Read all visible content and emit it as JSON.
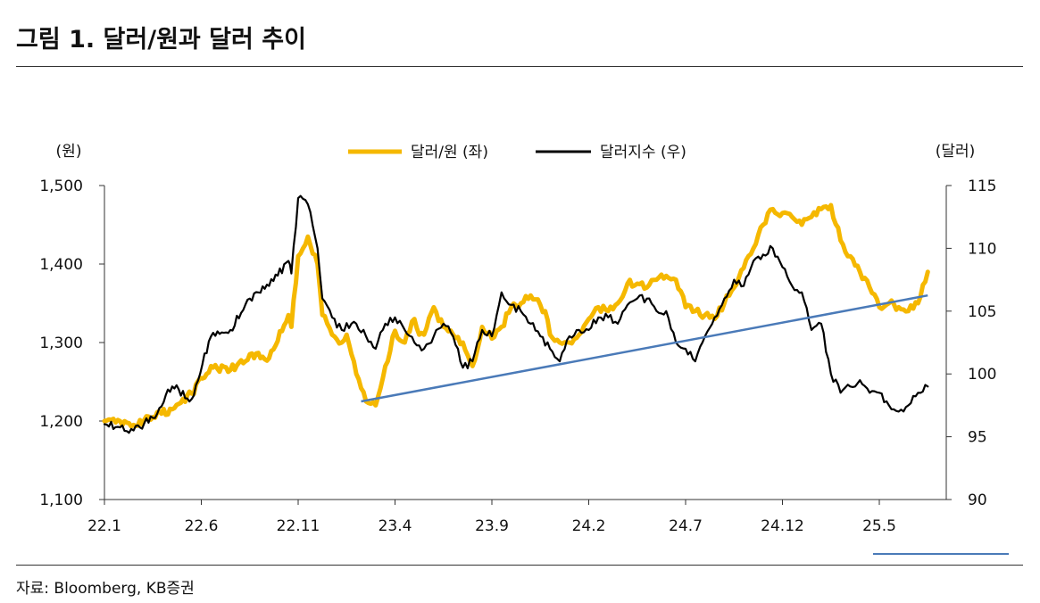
{
  "header": {
    "title": "그림 1. 달러/원과 달러 추이"
  },
  "footer": {
    "source": "자료: Bloomberg, KB증권"
  },
  "chart_data": {
    "type": "line",
    "left_axis": {
      "unit": "(원)",
      "range": [
        1100,
        1500
      ],
      "ticks": [
        "1,100",
        "1,200",
        "1,300",
        "1,400",
        "1,500"
      ],
      "tick_values": [
        1100,
        1200,
        1300,
        1400,
        1500
      ]
    },
    "right_axis": {
      "unit": "(달러)",
      "range": [
        90,
        115
      ],
      "ticks": [
        "90",
        "95",
        "100",
        "105",
        "110",
        "115"
      ],
      "tick_values": [
        90,
        95,
        100,
        105,
        110,
        115
      ]
    },
    "x_axis": {
      "ticks": [
        "22.1",
        "22.6",
        "22.11",
        "23.4",
        "23.9",
        "24.2",
        "24.7",
        "24.12",
        "25.5"
      ],
      "range": [
        0,
        8.58
      ]
    },
    "legend": {
      "placement": "top-center"
    },
    "series": [
      {
        "name": "달러/원 (좌)",
        "axis": "left",
        "color": "#F5B800",
        "x": [
          0,
          0.3,
          0.5,
          0.7,
          0.9,
          1.1,
          1.3,
          1.5,
          1.7,
          1.9,
          1.93,
          2.0,
          2.1,
          2.2,
          2.25,
          2.35,
          2.45,
          2.5,
          2.6,
          2.7,
          2.8,
          2.9,
          3.0,
          3.1,
          3.2,
          3.25,
          3.3,
          3.4,
          3.5,
          3.6,
          3.7,
          3.8,
          3.9,
          4.0,
          4.1,
          4.2,
          4.3,
          4.4,
          4.45,
          4.55,
          4.6,
          4.7,
          4.8,
          4.9,
          5.0,
          5.1,
          5.2,
          5.3,
          5.4,
          5.5,
          5.6,
          5.7,
          5.8,
          5.9,
          6.0,
          6.1,
          6.2,
          6.3,
          6.4,
          6.5,
          6.6,
          6.7,
          6.8,
          6.9,
          7.0,
          7.1,
          7.2,
          7.3,
          7.4,
          7.5,
          7.6,
          7.7,
          7.8,
          7.9,
          8.0,
          8.1,
          8.2,
          8.3,
          8.4,
          8.5
        ],
        "values": [
          1200,
          1195,
          1205,
          1215,
          1235,
          1270,
          1265,
          1285,
          1280,
          1335,
          1320,
          1410,
          1435,
          1400,
          1335,
          1310,
          1300,
          1310,
          1260,
          1225,
          1220,
          1270,
          1315,
          1300,
          1330,
          1310,
          1310,
          1345,
          1320,
          1310,
          1300,
          1270,
          1320,
          1305,
          1320,
          1345,
          1350,
          1360,
          1355,
          1340,
          1310,
          1300,
          1300,
          1310,
          1330,
          1345,
          1340,
          1350,
          1375,
          1375,
          1370,
          1380,
          1385,
          1380,
          1345,
          1340,
          1335,
          1330,
          1350,
          1370,
          1395,
          1420,
          1450,
          1470,
          1465,
          1460,
          1450,
          1460,
          1470,
          1475,
          1430,
          1410,
          1390,
          1370,
          1345,
          1350,
          1345,
          1340,
          1350,
          1390
        ]
      },
      {
        "name": "달러지수 (우)",
        "axis": "right",
        "color": "#000000",
        "x": [
          0,
          0.3,
          0.5,
          0.7,
          0.9,
          1.1,
          1.3,
          1.5,
          1.7,
          1.9,
          1.93,
          2.0,
          2.1,
          2.2,
          2.25,
          2.35,
          2.45,
          2.55,
          2.6,
          2.7,
          2.8,
          2.9,
          3.0,
          3.1,
          3.2,
          3.3,
          3.4,
          3.5,
          3.6,
          3.7,
          3.8,
          3.9,
          4.0,
          4.1,
          4.2,
          4.3,
          4.4,
          4.5,
          4.6,
          4.7,
          4.8,
          4.9,
          5.0,
          5.1,
          5.2,
          5.3,
          5.4,
          5.5,
          5.6,
          5.7,
          5.8,
          5.9,
          6.0,
          6.1,
          6.2,
          6.3,
          6.4,
          6.5,
          6.6,
          6.7,
          6.8,
          6.9,
          7.0,
          7.1,
          7.2,
          7.3,
          7.4,
          7.5,
          7.6,
          7.7,
          7.8,
          7.9,
          8.0,
          8.1,
          8.2,
          8.3,
          8.4,
          8.5
        ],
        "values": [
          96,
          95.5,
          96.5,
          99,
          98,
          103,
          103.5,
          106,
          107,
          109,
          108,
          114,
          113.5,
          110,
          106,
          104.5,
          103.5,
          104,
          104,
          103,
          102,
          104,
          104.5,
          103.5,
          102.5,
          102,
          103,
          104,
          103,
          100.5,
          101,
          103.5,
          103,
          106.5,
          105.5,
          105,
          104,
          103,
          102,
          101,
          103,
          103.5,
          103.5,
          104.5,
          104.5,
          104,
          105.5,
          106,
          106,
          105,
          105,
          102.5,
          102,
          101,
          103,
          104.5,
          106,
          107.5,
          107,
          109,
          109.5,
          110,
          108.5,
          107,
          106.5,
          103.5,
          104,
          100,
          98.5,
          99,
          99.5,
          98.5,
          98.5,
          97.5,
          97,
          97.5,
          98.5,
          99
        ]
      }
    ],
    "trend_line": {
      "axis": "left",
      "color": "#4A7AB8",
      "x": [
        2.65,
        8.5
      ],
      "values": [
        1225,
        1360
      ]
    }
  }
}
